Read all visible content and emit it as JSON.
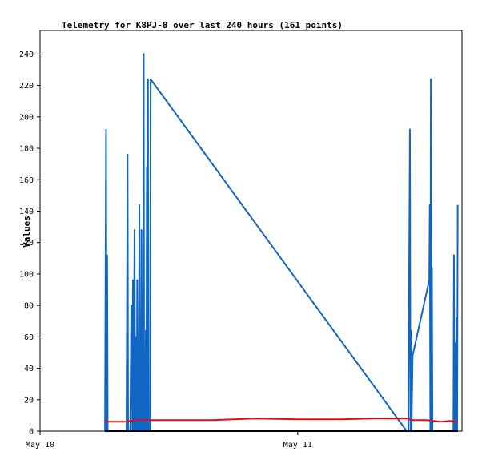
{
  "chart_data": {
    "type": "line",
    "title": "Telemetry for K8PJ-8 over last 240 hours (161 points)",
    "xlabel": "",
    "ylabel": "Values",
    "ylim": [
      0,
      255
    ],
    "xlim": [
      0,
      39.3
    ],
    "x_unit": "hours since May 10 00:00",
    "yticks": [
      0,
      20,
      40,
      60,
      80,
      100,
      120,
      140,
      160,
      180,
      200,
      220,
      240
    ],
    "xticks": [
      {
        "value": 0,
        "label": "May 10"
      },
      {
        "value": 24,
        "label": "May 11"
      }
    ],
    "grid": false,
    "series": [
      {
        "name": "",
        "color": "#1166c4",
        "x": [
          6.05,
          6.1,
          6.15,
          6.2,
          6.25,
          6.3,
          6.35,
          6.4,
          8.05,
          8.1,
          8.15,
          8.2,
          8.4,
          8.5,
          8.6,
          8.65,
          8.7,
          8.8,
          8.85,
          8.9,
          8.95,
          9.0,
          9.05,
          9.1,
          9.2,
          9.25,
          9.3,
          9.4,
          9.45,
          9.5,
          9.6,
          9.65,
          9.7,
          9.8,
          9.85,
          9.9,
          9.95,
          10.0,
          10.05,
          10.1,
          10.15,
          10.2,
          10.25,
          10.3,
          34.15,
          34.3,
          34.45,
          34.5,
          34.55,
          34.6,
          34.7,
          36.25,
          36.3,
          36.35,
          36.4,
          36.45,
          36.5,
          36.55,
          38.5,
          38.55,
          38.6,
          38.65,
          38.75,
          38.8,
          38.85,
          38.9
        ],
        "y": [
          0,
          97,
          192,
          0,
          112,
          0,
          0,
          0,
          0,
          80,
          176,
          0,
          0,
          80,
          0,
          96,
          0,
          128,
          0,
          60,
          0,
          0,
          96,
          0,
          0,
          144,
          0,
          0,
          128,
          0,
          0,
          240,
          0,
          0,
          64,
          0,
          168,
          0,
          224,
          0,
          0,
          0,
          0,
          224,
          0,
          0,
          192,
          0,
          64,
          0,
          48,
          96,
          144,
          0,
          224,
          0,
          104,
          0,
          0,
          112,
          0,
          56,
          0,
          72,
          0,
          144
        ]
      },
      {
        "name": "",
        "color": "#dd1111",
        "x": [
          6.05,
          6.3,
          8.0,
          8.8,
          9.5,
          10.5,
          16.0,
          20.0,
          24.0,
          28.0,
          31.0,
          34.2,
          34.6,
          36.0,
          37.3,
          38.2,
          38.9
        ],
        "y": [
          7,
          6,
          6,
          7,
          7,
          7,
          7,
          8,
          7.5,
          7.5,
          8,
          8,
          7,
          7,
          6,
          6.5,
          6
        ]
      },
      {
        "name": "",
        "color": "#000000",
        "x": [
          6.05,
          38.9
        ],
        "y": [
          0,
          0
        ]
      }
    ]
  }
}
